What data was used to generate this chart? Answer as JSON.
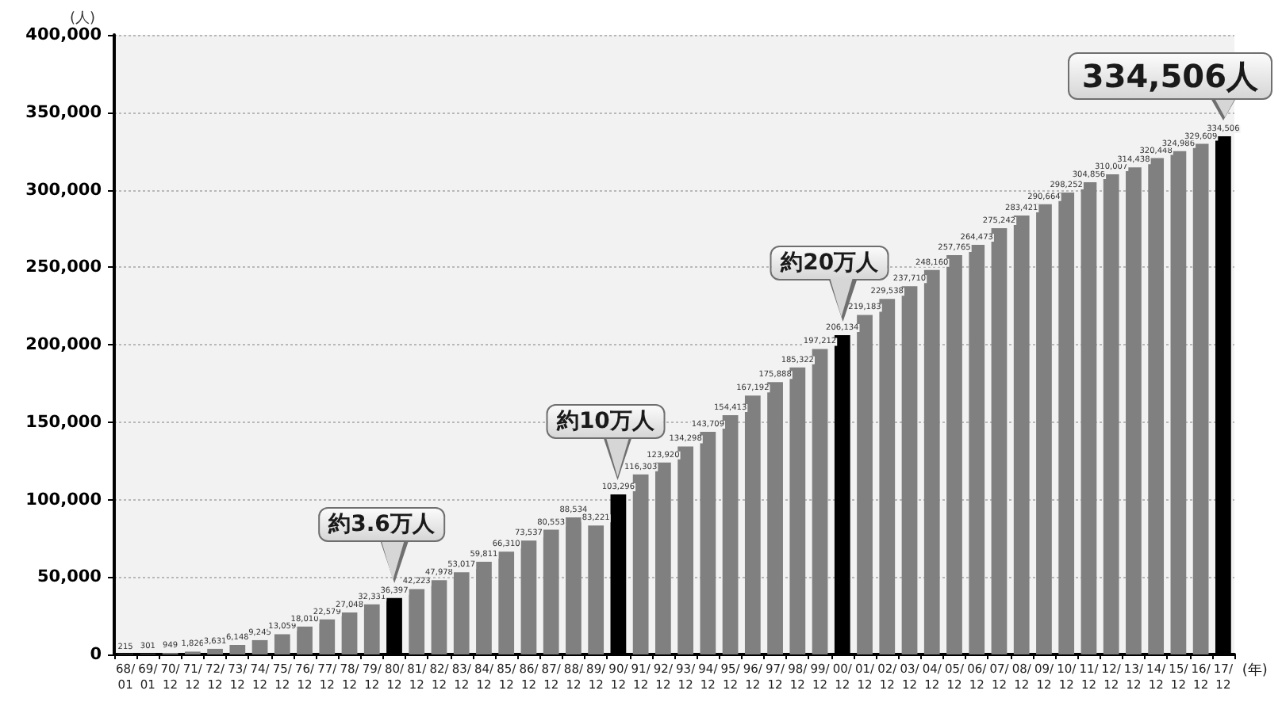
{
  "chart_data": {
    "type": "bar",
    "xlabel": "(年)",
    "ylabel": "(人)",
    "categories": [
      "68/\n01",
      "69/\n01",
      "70/\n12",
      "71/\n12",
      "72/\n12",
      "73/\n12",
      "74/\n12",
      "75/\n12",
      "76/\n12",
      "77/\n12",
      "78/\n12",
      "79/\n12",
      "80/\n12",
      "81/\n12",
      "82/\n12",
      "83/\n12",
      "84/\n12",
      "85/\n12",
      "86/\n12",
      "87/\n12",
      "88/\n12",
      "89/\n12",
      "90/\n12",
      "91/\n12",
      "92/\n12",
      "93/\n12",
      "94/\n12",
      "95/\n12",
      "96/\n12",
      "97/\n12",
      "98/\n12",
      "99/\n12",
      "00/\n12",
      "01/\n12",
      "02/\n12",
      "03/\n12",
      "04/\n12",
      "05/\n12",
      "06/\n12",
      "07/\n12",
      "08/\n12",
      "09/\n12",
      "10/\n12",
      "11/\n12",
      "12/\n12",
      "13/\n12",
      "14/\n12",
      "15/\n12",
      "16/\n12",
      "17/\n12"
    ],
    "values": [
      215,
      301,
      949,
      1826,
      3631,
      6148,
      9245,
      13059,
      18010,
      22579,
      27048,
      32331,
      36397,
      42223,
      47978,
      53017,
      59811,
      66310,
      73537,
      80553,
      88534,
      83221,
      103296,
      116303,
      123920,
      134298,
      143709,
      154413,
      167192,
      175888,
      185322,
      197212,
      206134,
      219183,
      229538,
      237710,
      248160,
      257765,
      264473,
      275242,
      283421,
      290664,
      298252,
      304856,
      310007,
      314438,
      320448,
      324986,
      329609,
      334506
    ],
    "value_labels": [
      "215",
      "301",
      "949",
      "1,826",
      "3,631",
      "6,148",
      "9,245",
      "13,059",
      "18,010",
      "22,579",
      "27,048",
      "32,331",
      "36,397",
      "42,223",
      "47,978",
      "53,017",
      "59,811",
      "66,310",
      "73,537",
      "80,553",
      "88,534",
      "83,221",
      "103,296",
      "116,303",
      "123,920",
      "134,298",
      "143,709",
      "154,413",
      "167,192",
      "175,888",
      "185,322",
      "197,212",
      "206,134",
      "219,183",
      "229,538",
      "237,710",
      "248,160",
      "257,765",
      "264,473",
      "275,242",
      "283,421",
      "290,664",
      "298,252",
      "304,856",
      "310,007",
      "314,438",
      "320,448",
      "324,986",
      "329,609",
      "334,506"
    ],
    "colors": [
      "#808080",
      "#808080",
      "#808080",
      "#808080",
      "#808080",
      "#808080",
      "#808080",
      "#808080",
      "#808080",
      "#808080",
      "#808080",
      "#808080",
      "#000000",
      "#808080",
      "#808080",
      "#808080",
      "#808080",
      "#808080",
      "#808080",
      "#808080",
      "#808080",
      "#808080",
      "#000000",
      "#808080",
      "#808080",
      "#808080",
      "#808080",
      "#808080",
      "#808080",
      "#808080",
      "#808080",
      "#808080",
      "#000000",
      "#808080",
      "#808080",
      "#808080",
      "#808080",
      "#808080",
      "#808080",
      "#808080",
      "#808080",
      "#808080",
      "#808080",
      "#808080",
      "#808080",
      "#808080",
      "#808080",
      "#808080",
      "#808080",
      "#000000"
    ],
    "ylim": [
      0,
      400000
    ],
    "yticks": [
      0,
      {
        "value": 50000,
        "label": "50,000"
      },
      {
        "value": 100000,
        "label": "100,000"
      },
      {
        "value": 150000,
        "label": "150,000"
      },
      {
        "value": 200000,
        "label": "200,000"
      },
      {
        "value": 250000,
        "label": "250,000"
      },
      {
        "value": 300000,
        "label": "300,000"
      },
      {
        "value": 350000,
        "label": "350,000"
      },
      {
        "value": 400000,
        "label": "400,000"
      }
    ],
    "grid": "y",
    "annotations": [
      {
        "text": "約3.6万人",
        "x": "80/\n12",
        "y": 36397
      },
      {
        "text": "約10万人",
        "x": "90/\n12",
        "y": 103296
      },
      {
        "text": "約20万人",
        "x": "00/\n12",
        "y": 206134
      },
      {
        "text": "334,506人",
        "x": "17/\n12",
        "y": 334506
      }
    ]
  }
}
